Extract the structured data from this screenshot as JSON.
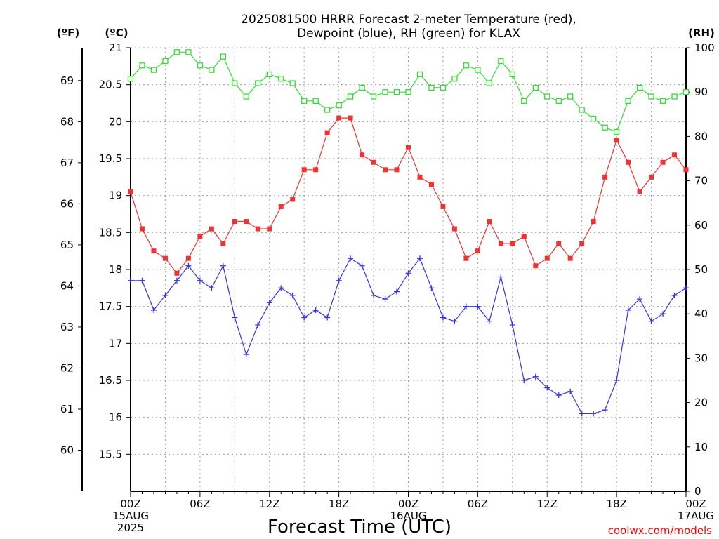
{
  "chart_data": {
    "type": "line",
    "title_lines": [
      "2025081500 HRRR Forecast 2-meter Temperature (red),",
      "Dewpoint (blue), RH (green) for KLAX"
    ],
    "xlabel": "Forecast Time (UTC)",
    "credit": "coolwx.com/models",
    "units": {
      "fahrenheit": "(ºF)",
      "celsius": "(ºC)",
      "rh": "(RH)"
    },
    "x_ticks": [
      {
        "hour": 0,
        "lines": [
          "00Z",
          "15AUG",
          "2025"
        ]
      },
      {
        "hour": 6,
        "lines": [
          "06Z"
        ]
      },
      {
        "hour": 12,
        "lines": [
          "12Z"
        ]
      },
      {
        "hour": 18,
        "lines": [
          "18Z"
        ]
      },
      {
        "hour": 24,
        "lines": [
          "00Z",
          "16AUG"
        ]
      },
      {
        "hour": 30,
        "lines": [
          "06Z"
        ]
      },
      {
        "hour": 36,
        "lines": [
          "12Z"
        ]
      },
      {
        "hour": 42,
        "lines": [
          "18Z"
        ]
      },
      {
        "hour": 48,
        "lines": [
          "00Z",
          "17AUG"
        ]
      }
    ],
    "xlim": [
      0,
      48
    ],
    "ylim_celsius": [
      15.0,
      21.0
    ],
    "ylim_rh": [
      0,
      100
    ],
    "celsius_ticks": [
      "15.5",
      "16",
      "16.5",
      "17",
      "17.5",
      "18",
      "18.5",
      "19",
      "19.5",
      "20",
      "20.5",
      "21"
    ],
    "fahrenheit_ticks": [
      "60",
      "61",
      "62",
      "63",
      "64",
      "65",
      "66",
      "67",
      "68",
      "69"
    ],
    "rh_ticks": [
      "0",
      "10",
      "20",
      "30",
      "40",
      "50",
      "60",
      "70",
      "80",
      "90",
      "100"
    ],
    "grid": true,
    "series": [
      {
        "name": "Temperature",
        "axis": "celsius",
        "color": "#ee3333",
        "marker": "filled-square",
        "values": [
          19.05,
          18.55,
          18.25,
          18.15,
          17.95,
          18.15,
          18.45,
          18.55,
          18.35,
          18.65,
          18.65,
          18.55,
          18.55,
          18.85,
          18.95,
          19.35,
          19.35,
          19.85,
          20.05,
          20.05,
          19.55,
          19.45,
          19.35,
          19.35,
          19.65,
          19.25,
          19.15,
          18.85,
          18.55,
          18.15,
          18.25,
          18.65,
          18.35,
          18.35,
          18.45,
          18.05,
          18.15,
          18.35,
          18.15,
          18.35,
          18.65,
          19.25,
          19.75,
          19.45,
          19.05,
          19.25,
          19.45,
          19.55,
          19.35
        ]
      },
      {
        "name": "Dewpoint",
        "axis": "celsius",
        "color": "#3333ee",
        "marker": "plus",
        "values": [
          17.85,
          17.85,
          17.45,
          17.65,
          17.85,
          18.05,
          17.85,
          17.75,
          18.05,
          17.35,
          16.85,
          17.25,
          17.55,
          17.75,
          17.65,
          17.35,
          17.45,
          17.35,
          17.85,
          18.15,
          18.05,
          17.65,
          17.6,
          17.7,
          17.95,
          18.15,
          17.75,
          17.35,
          17.3,
          17.5,
          17.5,
          17.3,
          17.9,
          17.25,
          16.5,
          16.55,
          16.4,
          16.3,
          16.35,
          16.05,
          16.05,
          16.1,
          16.5,
          17.45,
          17.6,
          17.3,
          17.4,
          17.65,
          17.75
        ]
      },
      {
        "name": "RH",
        "axis": "rh",
        "color": "#33dd33",
        "marker": "open-square",
        "values": [
          93,
          96,
          95,
          97,
          99,
          99,
          96,
          95,
          98,
          92,
          89,
          92,
          94,
          93,
          92,
          88,
          88,
          86,
          87,
          89,
          91,
          89,
          90,
          90,
          90,
          94,
          91,
          91,
          93,
          96,
          95,
          92,
          97,
          94,
          88,
          91,
          89,
          88,
          89,
          86,
          84,
          82,
          81,
          88,
          91,
          89,
          88,
          89,
          90
        ]
      }
    ]
  }
}
